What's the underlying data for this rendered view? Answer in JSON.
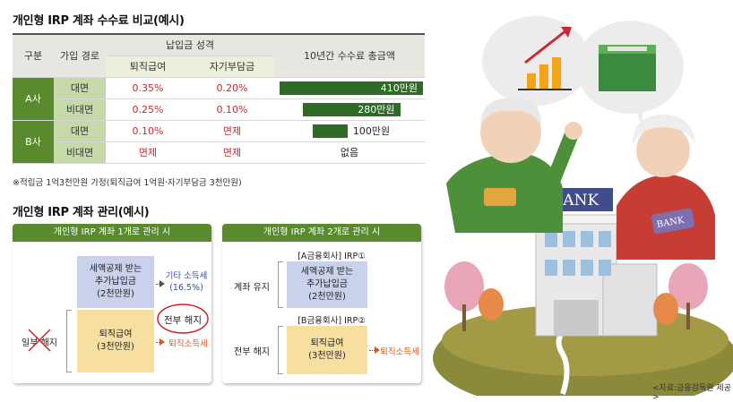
{
  "section1": {
    "title": "개인형 IRP 계좌 수수료 비교(예시)",
    "headers": {
      "category": "구분",
      "channel": "가입 경로",
      "payment_nature": "납입금 성격",
      "retirement_pay": "퇴직급여",
      "self_pay": "자기부담금",
      "total_fee": "10년간 수수료 총금액"
    },
    "rows": [
      {
        "company": "A사",
        "channel": "대면",
        "retirement": "0.35%",
        "self": "0.20%",
        "total": "410만원",
        "total_value": 410
      },
      {
        "company": "",
        "channel": "비대면",
        "retirement": "0.25%",
        "self": "0.10%",
        "total": "280만원",
        "total_value": 280
      },
      {
        "company": "B사",
        "channel": "대면",
        "retirement": "0.10%",
        "self": "면제",
        "total": "100만원",
        "total_value": 100
      },
      {
        "company": "",
        "channel": "비대면",
        "retirement": "면제",
        "self": "면제",
        "total": "없음",
        "total_value": 0
      }
    ],
    "note": "※적립금 1억3천만원 가정(퇴직급여 1억원·자기부담금 3천만원)"
  },
  "section2": {
    "title": "개인형 IRP 계좌 관리(예시)",
    "panel1": {
      "header": "개인형 IRP 계좌 1개로 관리 시",
      "box_blue": [
        "세액공제 받는",
        "추가납입금",
        "(2천만원)"
      ],
      "box_yellow": [
        "퇴직급여",
        "(3천만원)"
      ],
      "tax_other": [
        "기타 소득세",
        "(16.5%)"
      ],
      "full_cancel": "전부 해지",
      "tax_retire": "퇴직소득세",
      "partial_cancel": "일부 해지"
    },
    "panel2": {
      "header": "개인형 IRP 계좌 2개로 관리 시",
      "acct_a": "[A금융회사] IRP①",
      "acct_b": "[B금융회사] IRP②",
      "box_blue": [
        "세액공제 받는",
        "추가납입금",
        "(2천만원)"
      ],
      "box_yellow": [
        "퇴직급여",
        "(3천만원)"
      ],
      "keep": "계좌 유지",
      "full_cancel": "전부 해지",
      "tax_retire": "퇴직소득세"
    }
  },
  "illustration": {
    "bank_sign": "BANK",
    "book_text": "BANK",
    "source": "<자료:금융감독원 제공>"
  },
  "colors": {
    "green_dark": "#2e6b26",
    "green_mid": "#5a8a2e",
    "red": "#c8282f",
    "blue_box": "#c9d2ea",
    "yellow_box": "#f7dfa1",
    "orange": "#d9591c"
  }
}
